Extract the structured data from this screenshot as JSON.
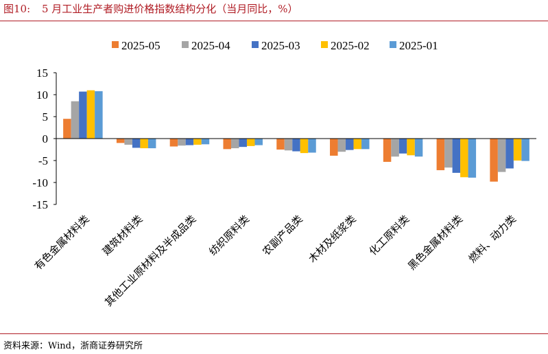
{
  "header": {
    "figure_no": "图10:",
    "title": "5 月工业生产者购进价格指数结构分化（当月同比，%）"
  },
  "footer": {
    "source": "资料来源：Wind，浙商证券研究所"
  },
  "colors": {
    "rule": "#b01c24",
    "series": [
      "#ed7d31",
      "#a5a5a5",
      "#4472c4",
      "#ffc000",
      "#5b9bd5"
    ]
  },
  "chart_data": {
    "type": "bar",
    "categories": [
      "有色金属材料类",
      "建筑材料类",
      "其他工业原材料及半成品类",
      "纺织原料类",
      "农副产品类",
      "木材及纸浆类",
      "化工原料类",
      "黑色金属材料类",
      "燃料、动力类"
    ],
    "series": [
      {
        "name": "2025-05",
        "values": [
          4.5,
          -1.0,
          -1.8,
          -2.4,
          -2.5,
          -3.9,
          -5.3,
          -7.2,
          -9.8
        ]
      },
      {
        "name": "2025-04",
        "values": [
          8.5,
          -1.4,
          -1.6,
          -2.2,
          -2.7,
          -3.0,
          -4.1,
          -6.6,
          -7.6
        ]
      },
      {
        "name": "2025-03",
        "values": [
          10.7,
          -2.1,
          -1.5,
          -1.9,
          -2.9,
          -2.6,
          -3.4,
          -7.8,
          -6.8
        ]
      },
      {
        "name": "2025-02",
        "values": [
          11.0,
          -2.2,
          -1.4,
          -1.7,
          -3.3,
          -2.4,
          -3.8,
          -8.8,
          -5.0
        ]
      },
      {
        "name": "2025-01",
        "values": [
          10.8,
          -2.2,
          -1.3,
          -1.5,
          -3.2,
          -2.4,
          -4.1,
          -8.9,
          -5.1
        ]
      }
    ],
    "ylim": [
      -15,
      15
    ],
    "yticks": [
      15,
      10,
      5,
      0,
      -5,
      -10,
      -15
    ],
    "legend": "top",
    "grid": false
  }
}
